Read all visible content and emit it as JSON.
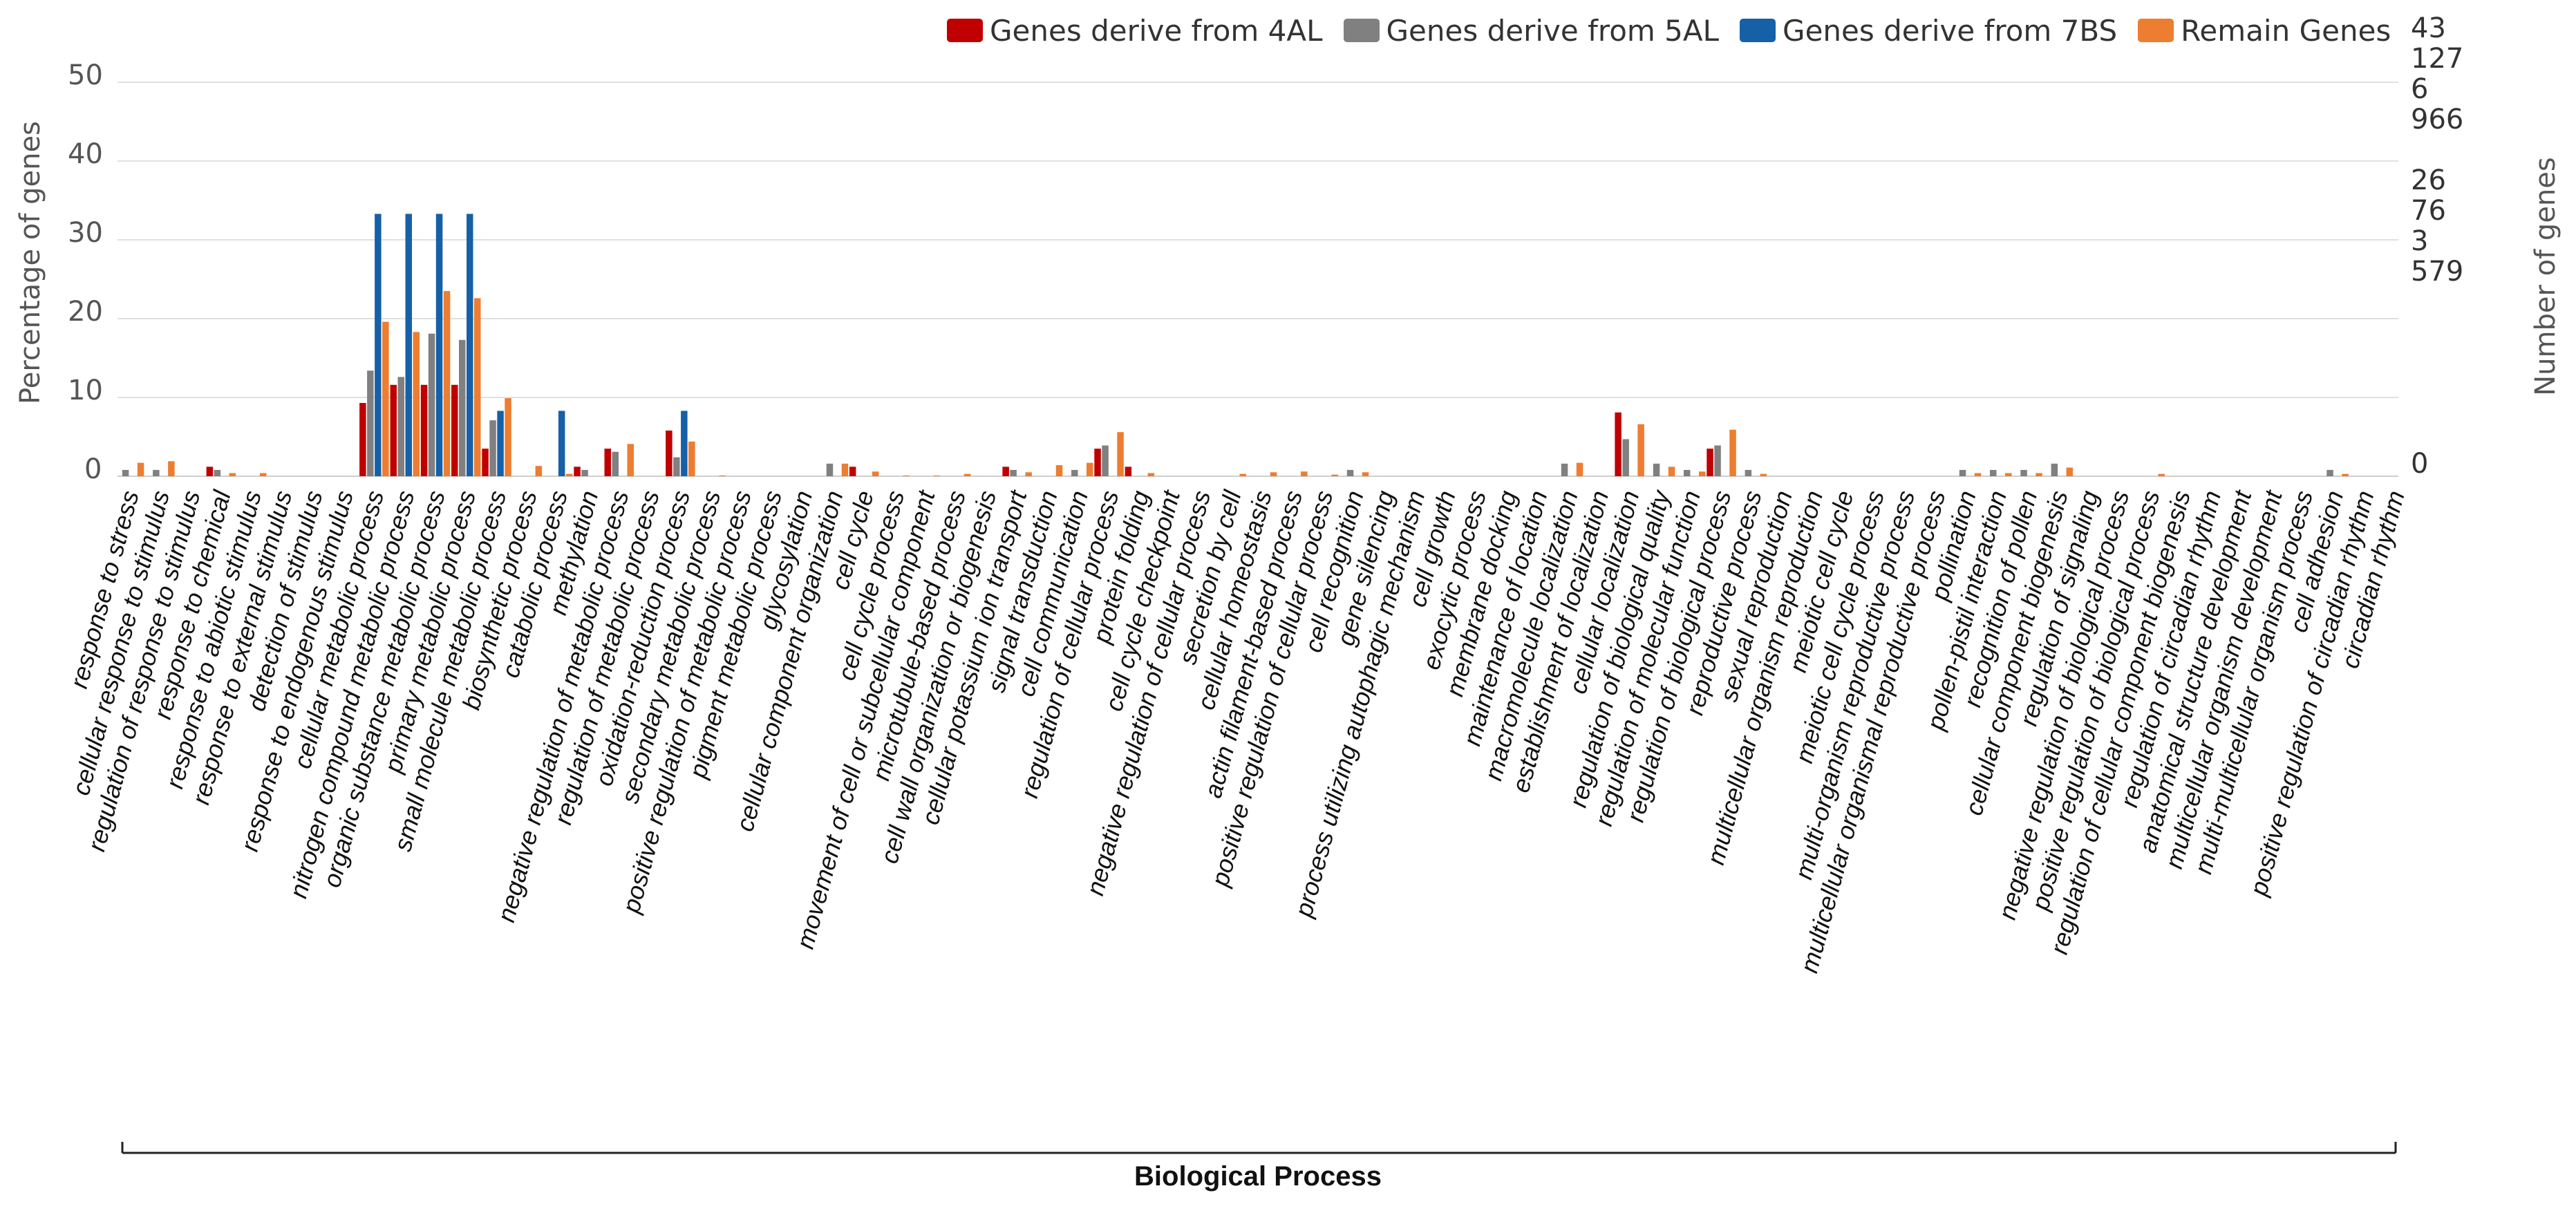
{
  "legend": [
    {
      "label": "Genes derive from 4AL",
      "color": "#c00000"
    },
    {
      "label": "Genes derive from 5AL",
      "color": "#808080"
    },
    {
      "label": "Genes derive from 7BS",
      "color": "#1660a8"
    },
    {
      "label": "Remain Genes",
      "color": "#ed7d31"
    }
  ],
  "right_numbers": [
    "43",
    "127",
    "6",
    "966",
    "26",
    "76",
    "3",
    "579",
    "0"
  ],
  "chart_data": {
    "type": "bar",
    "title": "",
    "xlabel": "Biological Process",
    "ylabel": "Percentage of genes",
    "y2label": "Number of genes",
    "ylim": [
      0,
      50
    ],
    "yticks": [
      "50",
      "40",
      "30",
      "20",
      "10",
      "0"
    ],
    "categories": [
      "response to stress",
      "cellular response to stimulus",
      "regulation of response to stimulus",
      "response to chemical",
      "response to abiotic stimulus",
      "response to external stimulus",
      "detection of stimulus",
      "response to endogenous stimulus",
      "cellular metabolic process",
      "nitrogen compound metabolic process",
      "organic substance metabolic process",
      "primary metabolic process",
      "small molecule metabolic process",
      "biosynthetic process",
      "catabolic process",
      "methylation",
      "negative regulation of metabolic process",
      "regulation of metabolic process",
      "oxidation-reduction process",
      "secondary metabolic process",
      "positive regulation of metabolic process",
      "pigment metabolic process",
      "glycosylation",
      "cellular component organization",
      "cell cycle",
      "cell cycle process",
      "movement of cell or subcellular component",
      "microtubule-based process",
      "cell wall organization or biogenesis",
      "cellular potassium ion transport",
      "signal transduction",
      "cell communication",
      "regulation of cellular process",
      "protein folding",
      "cell cycle checkpoint",
      "negative regulation of cellular process",
      "secretion by cell",
      "cellular homeostasis",
      "actin filament-based process",
      "positive regulation of cellular process",
      "cell recognition",
      "gene silencing",
      "process utilizing autophagic mechanism",
      "cell growth",
      "exocytic process",
      "membrane docking",
      "maintenance of location",
      "macromolecule localization",
      "establishment of localization",
      "cellular localization",
      "regulation of biological quality",
      "regulation of molecular function",
      "regulation of biological process",
      "reproductive process",
      "sexual reproduction",
      "multicellular organism reproduction",
      "meiotic cell cycle",
      "meiotic cell cycle process",
      "multi-organism reproductive process",
      "multicellular organismal reproductive process",
      "pollination",
      "pollen-pistil interaction",
      "recognition of pollen",
      "cellular component biogenesis",
      "regulation of signaling",
      "negative regulation of biological process",
      "positive regulation of biological process",
      "regulation of cellular component biogenesis",
      "regulation of circadian rhythm",
      "anatomical structure development",
      "multicellular organism development",
      "multi-multicellular organism process",
      "cell adhesion",
      "positive regulation of circadian rhythm",
      "circadian rhythm"
    ],
    "series": [
      {
        "name": "Genes derive from 4AL",
        "values": [
          0,
          0,
          0,
          1.2,
          0,
          0,
          0,
          0,
          9.3,
          11.6,
          11.6,
          11.6,
          3.5,
          0,
          0,
          1.2,
          3.5,
          0,
          5.8,
          0,
          0,
          0,
          0,
          0,
          1.2,
          0,
          0,
          0,
          0,
          1.2,
          0,
          0,
          3.5,
          1.2,
          0,
          0,
          0,
          0,
          0,
          0,
          0,
          0,
          0,
          0,
          0,
          0,
          0,
          0,
          0,
          8.1,
          0,
          0,
          3.5,
          0,
          0,
          0,
          0,
          0,
          0,
          0,
          0,
          0,
          0,
          0,
          0,
          0,
          0,
          0,
          0,
          0,
          0,
          0,
          0,
          0,
          0
        ]
      },
      {
        "name": "Genes derive from 5AL",
        "values": [
          0.8,
          0.8,
          0,
          0.8,
          0,
          0,
          0,
          0,
          13.4,
          12.6,
          18.1,
          17.3,
          7.1,
          0,
          0,
          0.8,
          3.1,
          0,
          2.4,
          0,
          0,
          0,
          0,
          1.6,
          0,
          0,
          0,
          0,
          0,
          0.8,
          0,
          0.8,
          3.9,
          0,
          0,
          0,
          0,
          0,
          0,
          0,
          0.8,
          0,
          0,
          0,
          0,
          0,
          0,
          1.6,
          0,
          4.7,
          1.6,
          0.8,
          3.9,
          0.8,
          0,
          0,
          0,
          0,
          0,
          0,
          0.8,
          0.8,
          0.8,
          1.6,
          0,
          0,
          0,
          0,
          0,
          0,
          0,
          0,
          0.8,
          0,
          0
        ]
      },
      {
        "name": "Genes derive from 7BS",
        "values": [
          0,
          0,
          0,
          0,
          0,
          0,
          0,
          0,
          33.3,
          33.3,
          33.3,
          33.3,
          8.3,
          0,
          8.3,
          0,
          0,
          0,
          8.3,
          0,
          0,
          0,
          0,
          0,
          0,
          0,
          0,
          0,
          0,
          0,
          0,
          0,
          0,
          0,
          0,
          0,
          0,
          0,
          0,
          0,
          0,
          0,
          0,
          0,
          0,
          0,
          0,
          0,
          0,
          0,
          0,
          0,
          0,
          0,
          0,
          0,
          0,
          0,
          0,
          0,
          0,
          0,
          0,
          0,
          0,
          0,
          0,
          0,
          0,
          0,
          0,
          0,
          0,
          0,
          0
        ]
      },
      {
        "name": "Remain Genes",
        "values": [
          1.7,
          1.9,
          0,
          0.4,
          0.4,
          0,
          0,
          0,
          19.6,
          18.3,
          23.5,
          22.6,
          9.9,
          1.3,
          0.3,
          0,
          4.1,
          0,
          4.4,
          0.1,
          0,
          0,
          0,
          1.6,
          0.6,
          0.1,
          0.1,
          0.3,
          0,
          0.5,
          1.4,
          1.7,
          5.6,
          0.4,
          0,
          0,
          0.3,
          0.5,
          0.6,
          0.2,
          0.5,
          0,
          0,
          0,
          0,
          0,
          0,
          1.7,
          0,
          6.6,
          1.2,
          0.6,
          5.9,
          0.3,
          0,
          0,
          0,
          0,
          0,
          0,
          0.4,
          0.4,
          0.4,
          1.1,
          0,
          0,
          0.3,
          0,
          0,
          0,
          0,
          0,
          0.3,
          0,
          0
        ]
      }
    ]
  }
}
